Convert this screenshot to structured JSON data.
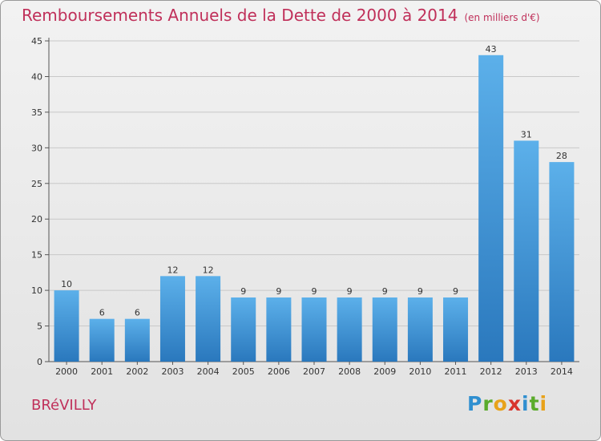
{
  "chart_data": {
    "type": "bar",
    "title": "Remboursements Annuels de la Dette de 2000 à 2014",
    "subtitle": "(en milliers d'€)",
    "xlabel": "",
    "ylabel": "",
    "categories": [
      "2000",
      "2001",
      "2002",
      "2003",
      "2004",
      "2005",
      "2006",
      "2007",
      "2008",
      "2009",
      "2010",
      "2011",
      "2012",
      "2013",
      "2014"
    ],
    "values": [
      10,
      6,
      6,
      12,
      12,
      9,
      9,
      9,
      9,
      9,
      9,
      9,
      43,
      31,
      28
    ],
    "ylim": [
      0,
      45
    ],
    "yticks": [
      0,
      5,
      10,
      15,
      20,
      25,
      30,
      35,
      40,
      45
    ],
    "grid": true,
    "bar_color": "#4ea3e0",
    "bar_color_dark": "#2f7fc0"
  },
  "footer": {
    "commune": "BRéVILLY",
    "logo_text": [
      "P",
      "r",
      "o",
      "x",
      "i",
      "t",
      "i"
    ]
  }
}
